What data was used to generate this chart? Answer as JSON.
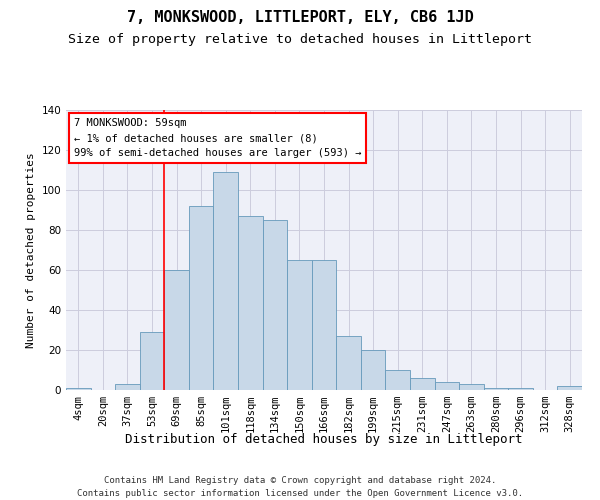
{
  "title": "7, MONKSWOOD, LITTLEPORT, ELY, CB6 1JD",
  "subtitle": "Size of property relative to detached houses in Littleport",
  "xlabel": "Distribution of detached houses by size in Littleport",
  "ylabel": "Number of detached properties",
  "footer_line1": "Contains HM Land Registry data © Crown copyright and database right 2024.",
  "footer_line2": "Contains public sector information licensed under the Open Government Licence v3.0.",
  "bins": [
    "4sqm",
    "20sqm",
    "37sqm",
    "53sqm",
    "69sqm",
    "85sqm",
    "101sqm",
    "118sqm",
    "134sqm",
    "150sqm",
    "166sqm",
    "182sqm",
    "199sqm",
    "215sqm",
    "231sqm",
    "247sqm",
    "263sqm",
    "280sqm",
    "296sqm",
    "312sqm",
    "328sqm"
  ],
  "bar_heights": [
    1,
    0,
    3,
    29,
    60,
    92,
    109,
    87,
    85,
    65,
    65,
    27,
    20,
    10,
    6,
    4,
    3,
    1,
    1,
    0,
    2
  ],
  "bar_color": "#c8d8e8",
  "bar_edge_color": "#6699bb",
  "red_line_x": 3.5,
  "annotation_text": "7 MONKSWOOD: 59sqm\n← 1% of detached houses are smaller (8)\n99% of semi-detached houses are larger (593) →",
  "annotation_box_color": "white",
  "annotation_box_edge_color": "red",
  "red_line_color": "red",
  "ylim": [
    0,
    140
  ],
  "yticks": [
    0,
    20,
    40,
    60,
    80,
    100,
    120,
    140
  ],
  "grid_color": "#ccccdd",
  "background_color": "#eef0f8",
  "title_fontsize": 11,
  "subtitle_fontsize": 9.5,
  "xlabel_fontsize": 9,
  "ylabel_fontsize": 8,
  "tick_fontsize": 7.5,
  "annotation_fontsize": 7.5,
  "footer_fontsize": 6.5
}
